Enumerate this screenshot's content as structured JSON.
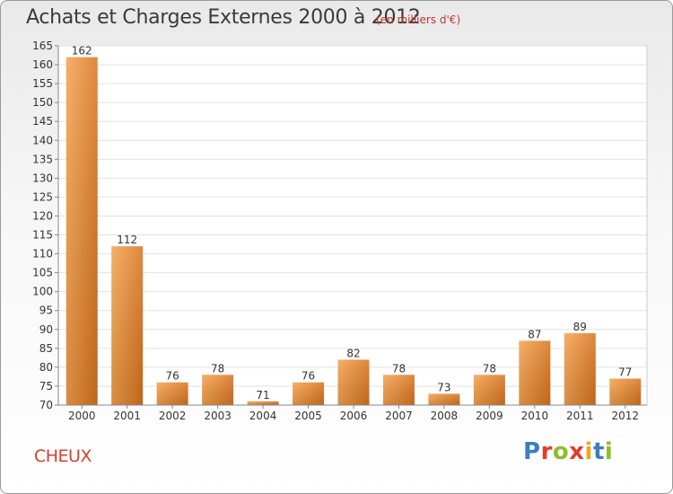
{
  "chart_data": {
    "type": "bar",
    "title": "Achats et Charges Externes 2000 à 2012",
    "subtitle": "(en milliers d'€)",
    "categories": [
      "2000",
      "2001",
      "2002",
      "2003",
      "2004",
      "2005",
      "2006",
      "2007",
      "2008",
      "2009",
      "2010",
      "2011",
      "2012"
    ],
    "values": [
      162,
      112,
      76,
      78,
      71,
      76,
      82,
      78,
      73,
      78,
      87,
      89,
      77
    ],
    "ylim": [
      70,
      165
    ],
    "yticks": [
      70,
      75,
      80,
      85,
      90,
      95,
      100,
      105,
      110,
      115,
      120,
      125,
      130,
      135,
      140,
      145,
      150,
      155,
      160,
      165
    ],
    "grid": true,
    "bar_color_light": "#f5a24e",
    "bar_color_dark": "#d9741e"
  },
  "footer": {
    "commune": "CHEUX",
    "brand_letters": [
      "P",
      "r",
      "o",
      "x",
      "i",
      "t",
      "i"
    ]
  }
}
